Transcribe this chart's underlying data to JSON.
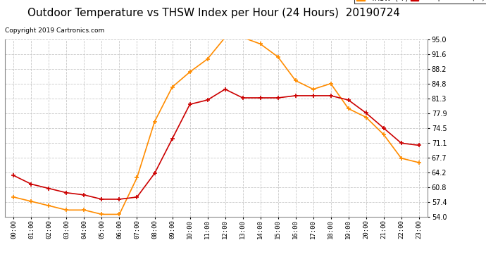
{
  "title": "Outdoor Temperature vs THSW Index per Hour (24 Hours)  20190724",
  "copyright": "Copyright 2019 Cartronics.com",
  "hours": [
    "00:00",
    "01:00",
    "02:00",
    "03:00",
    "04:00",
    "05:00",
    "06:00",
    "07:00",
    "08:00",
    "09:00",
    "10:00",
    "11:00",
    "12:00",
    "13:00",
    "14:00",
    "15:00",
    "16:00",
    "17:00",
    "18:00",
    "19:00",
    "20:00",
    "21:00",
    "22:00",
    "23:00"
  ],
  "temperature": [
    63.5,
    61.5,
    60.5,
    59.5,
    59.0,
    58.0,
    58.0,
    58.5,
    64.0,
    72.0,
    80.0,
    81.0,
    83.5,
    81.5,
    81.5,
    81.5,
    82.0,
    82.0,
    82.0,
    81.0,
    78.0,
    74.5,
    71.0,
    70.5
  ],
  "thsw": [
    58.5,
    57.5,
    56.5,
    55.5,
    55.5,
    54.5,
    54.5,
    63.0,
    76.0,
    84.0,
    87.5,
    90.5,
    95.5,
    95.5,
    94.0,
    91.0,
    85.5,
    83.5,
    84.8,
    79.0,
    77.0,
    73.0,
    67.5,
    66.5
  ],
  "temp_color": "#cc0000",
  "thsw_color": "#ff8c00",
  "ylim_min": 54.0,
  "ylim_max": 95.0,
  "yticks": [
    54.0,
    57.4,
    60.8,
    64.2,
    67.7,
    71.1,
    74.5,
    77.9,
    81.3,
    84.8,
    88.2,
    91.6,
    95.0
  ],
  "background_color": "#ffffff",
  "plot_bg_color": "#ffffff",
  "grid_color": "#c8c8c8",
  "title_fontsize": 11,
  "legend_thsw_label": "THSW  (°F)",
  "legend_temp_label": "Temperature  (°F)"
}
